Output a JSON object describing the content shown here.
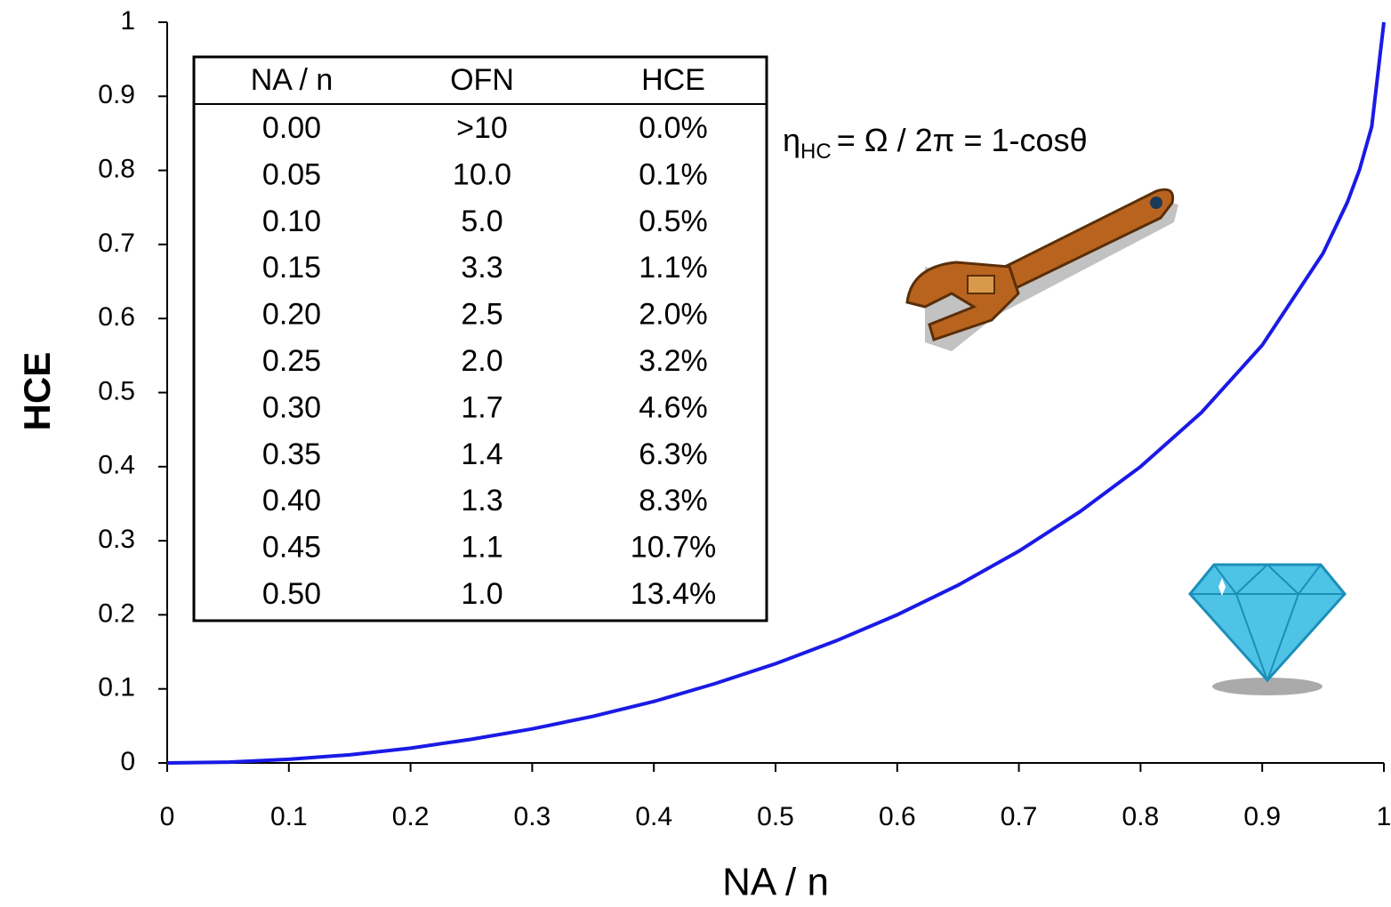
{
  "chart_data": {
    "type": "line",
    "x_label": "NA / n",
    "y_label": "HCE",
    "x": [
      0,
      0.05,
      0.1,
      0.15,
      0.2,
      0.25,
      0.3,
      0.35,
      0.4,
      0.45,
      0.5,
      0.55,
      0.6,
      0.65,
      0.7,
      0.75,
      0.8,
      0.85,
      0.9,
      0.95,
      0.97,
      0.98,
      0.99,
      1
    ],
    "values": [
      0,
      0.001,
      0.005,
      0.011,
      0.02,
      0.032,
      0.046,
      0.063,
      0.083,
      0.107,
      0.134,
      0.165,
      0.2,
      0.24,
      0.286,
      0.339,
      0.4,
      0.473,
      0.564,
      0.688,
      0.757,
      0.801,
      0.859,
      1
    ],
    "color": "#1a1ae6",
    "xlim": [
      0,
      1
    ],
    "ylim": [
      0,
      1
    ],
    "xticks": [
      0,
      0.1,
      0.2,
      0.3,
      0.4,
      0.5,
      0.6,
      0.7,
      0.8,
      0.9,
      1
    ],
    "yticks": [
      0,
      0.1,
      0.2,
      0.3,
      0.4,
      0.5,
      0.6,
      0.7,
      0.8,
      0.9,
      1
    ],
    "grid": false,
    "annotation": {
      "symbol": "η",
      "subscript": "HC",
      "text": "= Ω / 2π = 1-cosθ"
    },
    "table": {
      "header": [
        "NA / n",
        "OFN",
        "HCE"
      ],
      "rows": [
        [
          "0.00",
          ">10",
          "0.0%"
        ],
        [
          "0.05",
          "10.0",
          "0.1%"
        ],
        [
          "0.10",
          "5.0",
          "0.5%"
        ],
        [
          "0.15",
          "3.3",
          "1.1%"
        ],
        [
          "0.20",
          "2.5",
          "2.0%"
        ],
        [
          "0.25",
          "2.0",
          "3.2%"
        ],
        [
          "0.30",
          "1.7",
          "4.6%"
        ],
        [
          "0.35",
          "1.4",
          "6.3%"
        ],
        [
          "0.40",
          "1.3",
          "8.3%"
        ],
        [
          "0.45",
          "1.1",
          "10.7%"
        ],
        [
          "0.50",
          "1.0",
          "13.4%"
        ]
      ]
    }
  }
}
